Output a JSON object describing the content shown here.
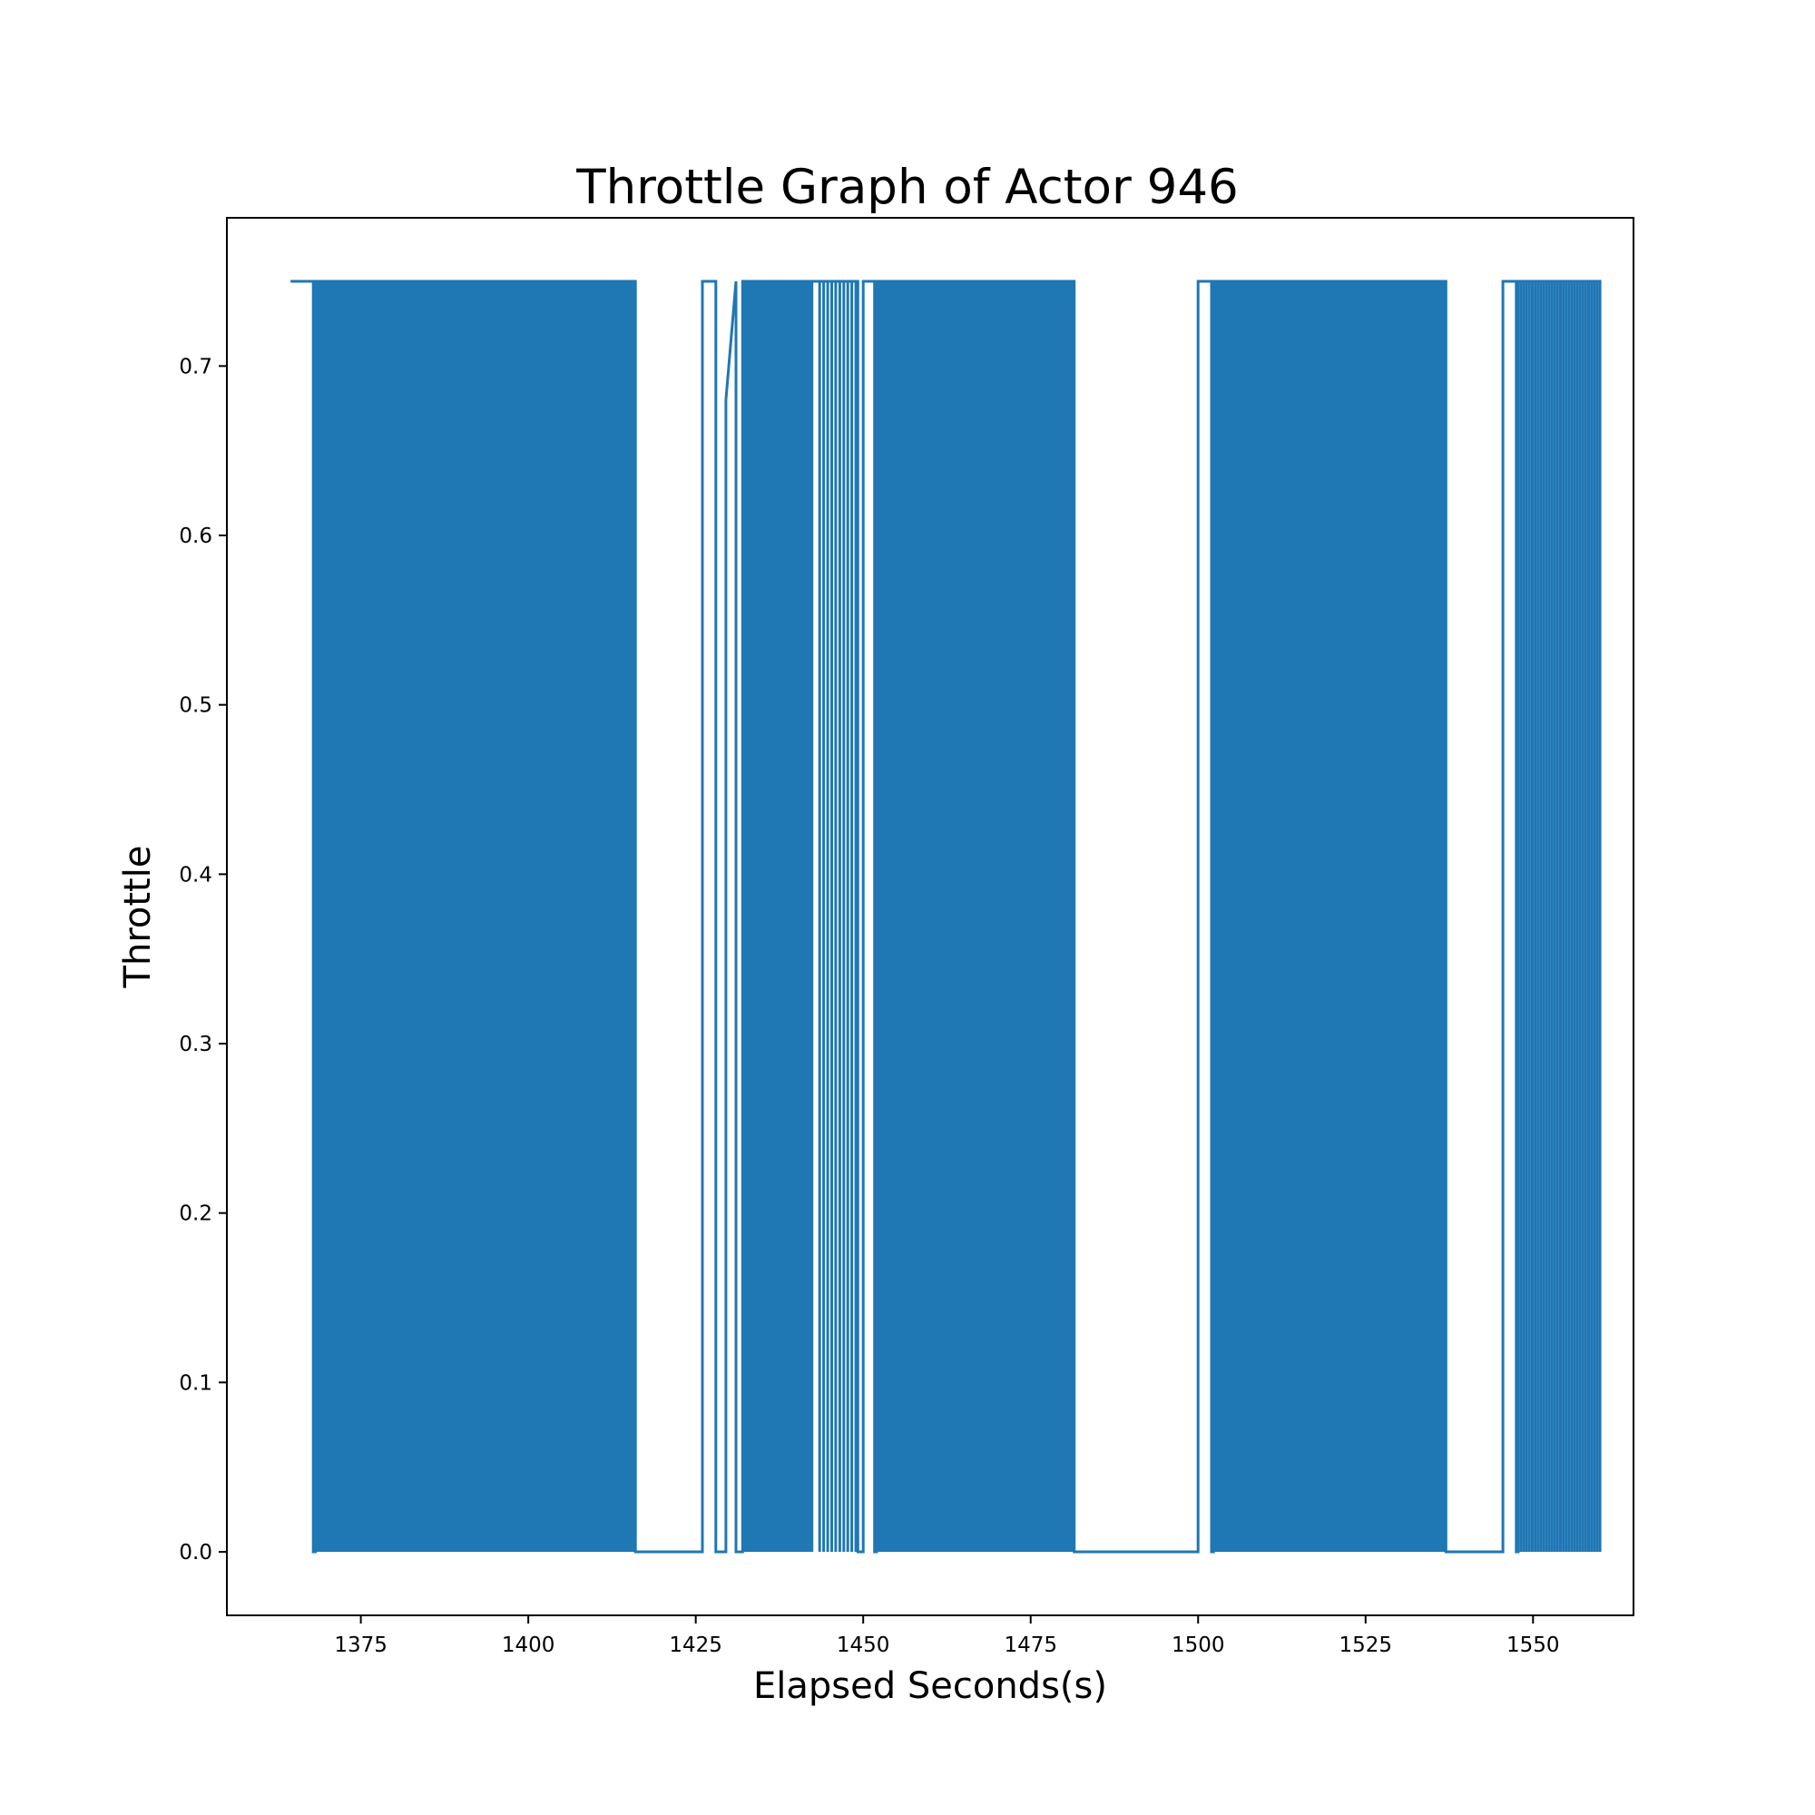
{
  "chart_data": {
    "type": "line",
    "title": "Throttle Graph of Actor 946",
    "xlabel": "Elapsed Seconds(s)",
    "ylabel": "Throttle",
    "xlim": [
      1355,
      1565
    ],
    "ylim": [
      -0.0375,
      0.7875
    ],
    "xticks": [
      1375,
      1400,
      1425,
      1450,
      1475,
      1500,
      1525,
      1550
    ],
    "yticks": [
      0.0,
      0.1,
      0.2,
      0.3,
      0.4,
      0.5,
      0.6,
      0.7
    ],
    "ytick_labels": [
      "0.0",
      "0.1",
      "0.2",
      "0.3",
      "0.4",
      "0.5",
      "0.6",
      "0.7"
    ],
    "grid": false,
    "legend": null,
    "colors": {
      "line": "#1f77b4"
    },
    "series": [
      {
        "values_high": 0.75,
        "values_low": 0.0,
        "points": [
          [
            1364.5,
            0.75
          ],
          [
            1367.9,
            0.75
          ],
          [
            1367.9,
            0.0
          ],
          [
            1368.2,
            0.0
          ],
          [
            1368.2,
            0.75
          ],
          [
            1416.0,
            0.75
          ],
          [
            1416.0,
            0.0
          ],
          [
            1426.0,
            0.0
          ],
          [
            1426.0,
            0.75
          ],
          [
            1428.0,
            0.75
          ],
          [
            1428.0,
            0.0
          ],
          [
            1429.5,
            0.0
          ],
          [
            1429.5,
            0.68
          ],
          [
            1431.0,
            0.75
          ],
          [
            1431.0,
            0.0
          ],
          [
            1432.0,
            0.0
          ],
          [
            1432.0,
            0.75
          ],
          [
            1449.2,
            0.75
          ],
          [
            1449.2,
            0.0
          ],
          [
            1450.0,
            0.0
          ],
          [
            1450.0,
            0.75
          ],
          [
            1451.7,
            0.75
          ],
          [
            1451.7,
            0.0
          ],
          [
            1452.0,
            0.0
          ],
          [
            1452.0,
            0.75
          ],
          [
            1481.5,
            0.75
          ],
          [
            1481.5,
            0.0
          ],
          [
            1500.0,
            0.0
          ],
          [
            1500.0,
            0.75
          ],
          [
            1502.0,
            0.75
          ],
          [
            1502.0,
            0.0
          ],
          [
            1502.3,
            0.0
          ],
          [
            1502.3,
            0.75
          ],
          [
            1537.0,
            0.75
          ],
          [
            1537.0,
            0.0
          ],
          [
            1545.5,
            0.0
          ],
          [
            1545.5,
            0.75
          ],
          [
            1547.5,
            0.75
          ],
          [
            1547.5,
            0.0
          ],
          [
            1547.8,
            0.0
          ],
          [
            1547.8,
            0.75
          ],
          [
            1560.0,
            0.75
          ],
          [
            1560.0,
            0.0
          ]
        ]
      }
    ]
  }
}
